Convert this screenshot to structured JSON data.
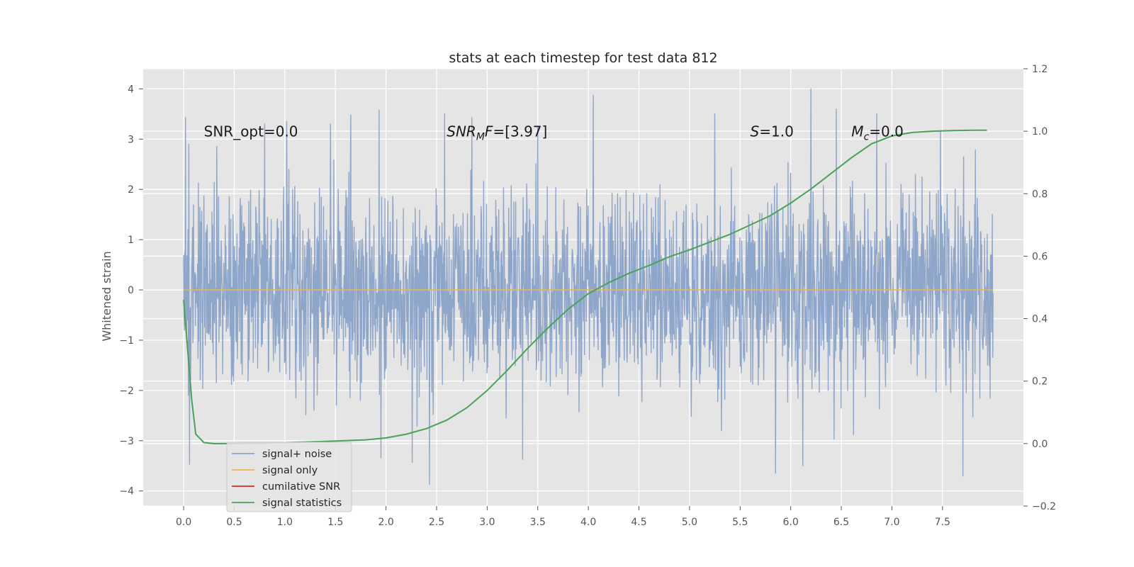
{
  "chart_data": {
    "type": "line",
    "title": "stats at each timestep for test data 812",
    "ylabel": "Whitened strain",
    "y2label": "",
    "xlim": [
      -0.4,
      8.3
    ],
    "ylim": [
      -4.3,
      4.4
    ],
    "y2lim": [
      -0.2,
      1.2
    ],
    "x_ticks": [
      0.0,
      0.5,
      1.0,
      1.5,
      2.0,
      2.5,
      3.0,
      3.5,
      4.0,
      4.5,
      5.0,
      5.5,
      6.0,
      6.5,
      7.0,
      7.5
    ],
    "y_ticks": [
      -4,
      -3,
      -2,
      -1,
      0,
      1,
      2,
      3,
      4
    ],
    "y2_ticks": [
      -0.2,
      0.0,
      0.2,
      0.4,
      0.6,
      0.8,
      1.0,
      1.2
    ],
    "grid": true,
    "legend_position": "lower-left",
    "annotations": [
      {
        "text": "SNR_opt=0.0",
        "x": 0.2,
        "y": 3.15
      },
      {
        "text": "SNR_MF=[3.97]",
        "x": 2.6,
        "y": 3.15
      },
      {
        "text": "S=1.0",
        "x": 5.6,
        "y": 3.15
      },
      {
        "text": "M_c=0.0",
        "x": 6.6,
        "y": 3.15
      }
    ],
    "series": [
      {
        "name": "signal+ noise",
        "color": "#8fa6cb",
        "axis": "left",
        "kind": "noise",
        "x_range": [
          0.0,
          8.0
        ],
        "amplitude_range": [
          -3.87,
          4.0
        ],
        "peaks": [
          {
            "x": 0.02,
            "y": 3.43
          },
          {
            "x": 0.05,
            "y": 2.9
          },
          {
            "x": 0.06,
            "y": -3.47
          },
          {
            "x": 0.8,
            "y": 3.3
          },
          {
            "x": 1.02,
            "y": 3.35
          },
          {
            "x": 1.45,
            "y": 3.3
          },
          {
            "x": 1.65,
            "y": 3.48
          },
          {
            "x": 1.93,
            "y": 3.58
          },
          {
            "x": 1.95,
            "y": -3.34
          },
          {
            "x": 2.26,
            "y": -3.43
          },
          {
            "x": 2.43,
            "y": -3.87
          },
          {
            "x": 2.58,
            "y": 3.5
          },
          {
            "x": 2.85,
            "y": 3.43
          },
          {
            "x": 3.35,
            "y": -3.37
          },
          {
            "x": 3.5,
            "y": 3.25
          },
          {
            "x": 4.05,
            "y": 3.87
          },
          {
            "x": 5.25,
            "y": 3.5
          },
          {
            "x": 5.85,
            "y": -3.65
          },
          {
            "x": 6.2,
            "y": 4.0
          },
          {
            "x": 6.12,
            "y": -3.5
          },
          {
            "x": 6.45,
            "y": 3.6
          },
          {
            "x": 6.85,
            "y": 3.5
          },
          {
            "x": 7.48,
            "y": 3.15
          },
          {
            "x": 7.7,
            "y": -3.7
          }
        ]
      },
      {
        "name": "signal only",
        "color": "#e8b84a",
        "axis": "left",
        "x": [
          0.0,
          8.0
        ],
        "y": [
          0.0,
          0.0
        ]
      },
      {
        "name": "cumilative SNR",
        "color": "#d62728",
        "axis": "right",
        "x": [],
        "y": []
      },
      {
        "name": "signal statistics",
        "color": "#4aa259",
        "axis": "right",
        "x": [
          0.0,
          0.04,
          0.08,
          0.12,
          0.2,
          0.3,
          0.5,
          1.0,
          1.5,
          1.8,
          2.0,
          2.2,
          2.4,
          2.6,
          2.8,
          3.0,
          3.2,
          3.4,
          3.6,
          3.8,
          4.0,
          4.2,
          4.4,
          4.6,
          4.8,
          5.0,
          5.2,
          5.4,
          5.6,
          5.8,
          6.0,
          6.2,
          6.4,
          6.6,
          6.8,
          7.0,
          7.2,
          7.4,
          7.6,
          7.8,
          7.94
        ],
        "y": [
          0.46,
          0.3,
          0.14,
          0.03,
          0.003,
          0.0,
          0.0,
          0.003,
          0.008,
          0.012,
          0.018,
          0.03,
          0.048,
          0.075,
          0.115,
          0.17,
          0.235,
          0.305,
          0.37,
          0.43,
          0.48,
          0.515,
          0.545,
          0.57,
          0.598,
          0.62,
          0.645,
          0.67,
          0.7,
          0.73,
          0.77,
          0.815,
          0.865,
          0.915,
          0.96,
          0.985,
          0.996,
          1.0,
          1.002,
          1.003,
          1.003
        ]
      }
    ]
  }
}
